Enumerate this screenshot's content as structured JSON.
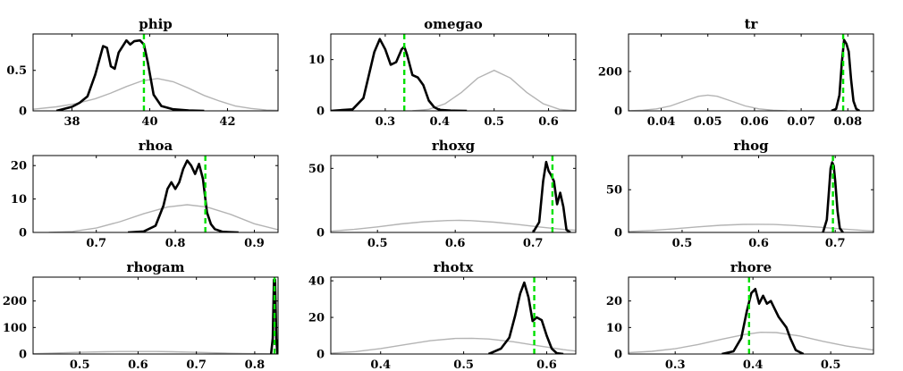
{
  "chart_data": [
    {
      "type": "line",
      "title": "phip",
      "xlim": [
        37,
        43.3
      ],
      "ylim": [
        0,
        0.95
      ],
      "xticks": [
        38,
        40,
        42
      ],
      "xtick_labels": [
        "38",
        "40",
        "42"
      ],
      "yticks": [
        0,
        0.5
      ],
      "ytick_labels": [
        "0",
        "0.5"
      ],
      "mode_line": 39.85,
      "series": [
        {
          "role": "prior",
          "x": [
            37.0,
            37.6,
            38.1,
            38.6,
            39.0,
            39.4,
            39.8,
            40.2,
            40.6,
            41.0,
            41.4,
            41.8,
            42.2,
            42.6,
            43.0,
            43.3
          ],
          "y": [
            0.02,
            0.05,
            0.09,
            0.15,
            0.22,
            0.3,
            0.37,
            0.4,
            0.36,
            0.28,
            0.19,
            0.12,
            0.06,
            0.03,
            0.01,
            0.005
          ]
        },
        {
          "role": "posterior",
          "x": [
            37.6,
            38.0,
            38.2,
            38.4,
            38.6,
            38.8,
            38.9,
            39.0,
            39.1,
            39.2,
            39.4,
            39.5,
            39.6,
            39.75,
            39.85,
            39.95,
            40.1,
            40.3,
            40.6,
            41.0,
            41.4
          ],
          "y": [
            0.0,
            0.05,
            0.1,
            0.18,
            0.45,
            0.8,
            0.78,
            0.55,
            0.52,
            0.72,
            0.87,
            0.82,
            0.86,
            0.87,
            0.82,
            0.6,
            0.2,
            0.06,
            0.02,
            0.005,
            0.0
          ]
        }
      ]
    },
    {
      "type": "line",
      "title": "omegao",
      "xlim": [
        0.2,
        0.65
      ],
      "ylim": [
        0,
        15
      ],
      "xticks": [
        0.3,
        0.4,
        0.5,
        0.6
      ],
      "xtick_labels": [
        "0.3",
        "0.4",
        "0.5",
        "0.6"
      ],
      "yticks": [
        0,
        10
      ],
      "ytick_labels": [
        "0",
        "10"
      ],
      "mode_line": 0.335,
      "series": [
        {
          "role": "prior",
          "x": [
            0.35,
            0.38,
            0.41,
            0.44,
            0.47,
            0.5,
            0.53,
            0.56,
            0.59,
            0.62,
            0.65
          ],
          "y": [
            0.0,
            0.3,
            1.4,
            3.6,
            6.4,
            7.9,
            6.4,
            3.6,
            1.4,
            0.3,
            0.0
          ]
        },
        {
          "role": "posterior",
          "x": [
            0.2,
            0.24,
            0.26,
            0.27,
            0.28,
            0.29,
            0.3,
            0.31,
            0.32,
            0.33,
            0.335,
            0.34,
            0.35,
            0.36,
            0.37,
            0.38,
            0.39,
            0.4,
            0.42,
            0.45
          ],
          "y": [
            0.0,
            0.3,
            2.5,
            7.0,
            11.5,
            14.0,
            12.0,
            9.0,
            9.5,
            12.0,
            12.5,
            11.0,
            7.0,
            6.5,
            5.0,
            2.0,
            0.7,
            0.2,
            0.05,
            0.0
          ]
        }
      ]
    },
    {
      "type": "line",
      "title": "tr",
      "xlim": [
        0.033,
        0.0855
      ],
      "ylim": [
        0,
        390
      ],
      "xticks": [
        0.04,
        0.05,
        0.06,
        0.07,
        0.08
      ],
      "xtick_labels": [
        "0.04",
        "0.05",
        "0.06",
        "0.07",
        "0.08"
      ],
      "yticks": [
        0,
        200
      ],
      "ytick_labels": [
        "0",
        "200"
      ],
      "mode_line": 0.079,
      "series": [
        {
          "role": "prior",
          "x": [
            0.033,
            0.036,
            0.039,
            0.042,
            0.045,
            0.048,
            0.05,
            0.052,
            0.055,
            0.058,
            0.061,
            0.064,
            0.067
          ],
          "y": [
            0,
            3,
            10,
            25,
            50,
            74,
            80,
            74,
            50,
            25,
            10,
            3,
            0
          ]
        },
        {
          "role": "posterior",
          "x": [
            0.0765,
            0.0775,
            0.0782,
            0.0787,
            0.0792,
            0.0797,
            0.0802,
            0.0807,
            0.0812,
            0.0818,
            0.0825
          ],
          "y": [
            0,
            10,
            80,
            240,
            360,
            340,
            300,
            160,
            50,
            10,
            0
          ]
        }
      ]
    },
    {
      "type": "line",
      "title": "rhoa",
      "xlim": [
        0.62,
        0.93
      ],
      "ylim": [
        0,
        23
      ],
      "xticks": [
        0.7,
        0.8,
        0.9
      ],
      "xtick_labels": [
        "0.7",
        "0.8",
        "0.9"
      ],
      "yticks": [
        0,
        10,
        20
      ],
      "ytick_labels": [
        "0",
        "10",
        "20"
      ],
      "mode_line": 0.838,
      "series": [
        {
          "role": "prior",
          "x": [
            0.64,
            0.67,
            0.7,
            0.73,
            0.76,
            0.79,
            0.815,
            0.84,
            0.87,
            0.9,
            0.93
          ],
          "y": [
            0.0,
            0.3,
            1.3,
            3.2,
            5.6,
            7.6,
            8.3,
            7.6,
            5.4,
            2.6,
            0.8
          ]
        },
        {
          "role": "posterior",
          "x": [
            0.74,
            0.76,
            0.775,
            0.785,
            0.79,
            0.795,
            0.8,
            0.805,
            0.81,
            0.815,
            0.82,
            0.825,
            0.83,
            0.835,
            0.84,
            0.845,
            0.85,
            0.86,
            0.88
          ],
          "y": [
            0.0,
            0.3,
            2.0,
            8.0,
            13.0,
            15.0,
            13.0,
            15.0,
            19.0,
            21.5,
            20.0,
            17.5,
            20.5,
            16.0,
            6.0,
            2.5,
            1.0,
            0.2,
            0.0
          ]
        }
      ]
    },
    {
      "type": "line",
      "title": "rhoxg",
      "xlim": [
        0.44,
        0.755
      ],
      "ylim": [
        0,
        60
      ],
      "xticks": [
        0.5,
        0.6,
        0.7
      ],
      "xtick_labels": [
        "0.5",
        "0.6",
        "0.7"
      ],
      "yticks": [
        0,
        50
      ],
      "ytick_labels": [
        "0",
        "50"
      ],
      "mode_line": 0.725,
      "series": [
        {
          "role": "prior",
          "x": [
            0.44,
            0.47,
            0.5,
            0.53,
            0.56,
            0.59,
            0.605,
            0.62,
            0.65,
            0.68,
            0.71,
            0.74,
            0.755
          ],
          "y": [
            1.0,
            2.4,
            4.3,
            6.6,
            8.4,
            9.3,
            9.4,
            9.2,
            8.0,
            6.2,
            4.1,
            2.3,
            1.7
          ]
        },
        {
          "role": "posterior",
          "x": [
            0.7,
            0.708,
            0.713,
            0.717,
            0.72,
            0.723,
            0.727,
            0.731,
            0.735,
            0.739,
            0.743,
            0.748
          ],
          "y": [
            0,
            8,
            40,
            55,
            48,
            45,
            40,
            22,
            31,
            20,
            2,
            0
          ]
        }
      ]
    },
    {
      "type": "line",
      "title": "rhog",
      "xlim": [
        0.43,
        0.75
      ],
      "ylim": [
        0,
        90
      ],
      "xticks": [
        0.5,
        0.6,
        0.7
      ],
      "xtick_labels": [
        "0.5",
        "0.6",
        "0.7"
      ],
      "yticks": [
        0,
        50
      ],
      "ytick_labels": [
        "0",
        "50"
      ],
      "mode_line": 0.697,
      "series": [
        {
          "role": "prior",
          "x": [
            0.43,
            0.46,
            0.49,
            0.52,
            0.55,
            0.58,
            0.6,
            0.62,
            0.65,
            0.68,
            0.71,
            0.74,
            0.75
          ],
          "y": [
            1.0,
            2.3,
            4.3,
            6.5,
            8.4,
            9.4,
            9.5,
            9.3,
            8.0,
            6.1,
            4.0,
            2.2,
            1.7
          ]
        },
        {
          "role": "posterior",
          "x": [
            0.684,
            0.689,
            0.692,
            0.694,
            0.696,
            0.698,
            0.7,
            0.703,
            0.706,
            0.71
          ],
          "y": [
            0,
            15,
            50,
            75,
            82,
            78,
            60,
            25,
            5,
            0
          ]
        }
      ]
    },
    {
      "type": "line",
      "title": "rhogam",
      "xlim": [
        0.42,
        0.84
      ],
      "ylim": [
        0,
        290
      ],
      "xticks": [
        0.5,
        0.6,
        0.7,
        0.8
      ],
      "xtick_labels": [
        "0.5",
        "0.6",
        "0.7",
        "0.8"
      ],
      "yticks": [
        0,
        100,
        200
      ],
      "ytick_labels": [
        "0",
        "100",
        "200"
      ],
      "mode_line": 0.834,
      "series": [
        {
          "role": "prior",
          "x": [
            0.42,
            0.45,
            0.48,
            0.51,
            0.54,
            0.57,
            0.6,
            0.63,
            0.66,
            0.69,
            0.72,
            0.75,
            0.78,
            0.81,
            0.84
          ],
          "y": [
            1,
            3,
            5,
            7,
            8.5,
            9.3,
            9.5,
            9.3,
            8.5,
            7,
            5,
            3.5,
            2,
            1,
            0.5
          ]
        },
        {
          "role": "posterior",
          "x": [
            0.828,
            0.831,
            0.833,
            0.835,
            0.837,
            0.839
          ],
          "y": [
            0,
            60,
            280,
            280,
            60,
            0
          ]
        }
      ]
    },
    {
      "type": "line",
      "title": "rhotx",
      "xlim": [
        0.34,
        0.635
      ],
      "ylim": [
        0,
        42
      ],
      "xticks": [
        0.4,
        0.5,
        0.6
      ],
      "xtick_labels": [
        "0.4",
        "0.5",
        "0.6"
      ],
      "yticks": [
        0,
        20,
        40
      ],
      "ytick_labels": [
        "0",
        "20",
        "40"
      ],
      "mode_line": 0.585,
      "series": [
        {
          "role": "prior",
          "x": [
            0.34,
            0.37,
            0.4,
            0.43,
            0.46,
            0.49,
            0.51,
            0.53,
            0.56,
            0.59,
            0.62,
            0.635
          ],
          "y": [
            0.5,
            1.3,
            3.0,
            5.2,
            7.3,
            8.5,
            8.6,
            8.2,
            6.7,
            4.5,
            2.4,
            1.6
          ]
        },
        {
          "role": "posterior",
          "x": [
            0.53,
            0.545,
            0.555,
            0.562,
            0.568,
            0.573,
            0.578,
            0.583,
            0.588,
            0.594,
            0.6,
            0.606,
            0.612,
            0.62
          ],
          "y": [
            0.0,
            3.0,
            9.0,
            21.0,
            33.0,
            39.0,
            31.0,
            18.0,
            20.0,
            18.5,
            10.0,
            3.0,
            0.5,
            0.0
          ]
        }
      ]
    },
    {
      "type": "line",
      "title": "rhore",
      "xlim": [
        0.24,
        0.555
      ],
      "ylim": [
        0,
        29
      ],
      "xticks": [
        0.3,
        0.4,
        0.5
      ],
      "xtick_labels": [
        "0.3",
        "0.4",
        "0.5"
      ],
      "yticks": [
        0,
        10,
        20
      ],
      "ytick_labels": [
        "0",
        "10",
        "20"
      ],
      "mode_line": 0.395,
      "series": [
        {
          "role": "prior",
          "x": [
            0.24,
            0.27,
            0.3,
            0.33,
            0.36,
            0.39,
            0.41,
            0.43,
            0.46,
            0.49,
            0.52,
            0.555
          ],
          "y": [
            0.5,
            1.0,
            2.0,
            3.6,
            5.6,
            7.4,
            8.2,
            8.1,
            6.8,
            4.8,
            3.0,
            1.5
          ]
        },
        {
          "role": "posterior",
          "x": [
            0.36,
            0.375,
            0.385,
            0.392,
            0.398,
            0.403,
            0.408,
            0.413,
            0.418,
            0.423,
            0.428,
            0.433,
            0.438,
            0.443,
            0.448,
            0.455,
            0.465
          ],
          "y": [
            0.0,
            1.0,
            6.0,
            16.0,
            23.0,
            24.5,
            19.0,
            22.0,
            19.0,
            20.0,
            17.0,
            14.0,
            12.0,
            10.0,
            6.0,
            1.5,
            0.0
          ]
        }
      ]
    }
  ]
}
